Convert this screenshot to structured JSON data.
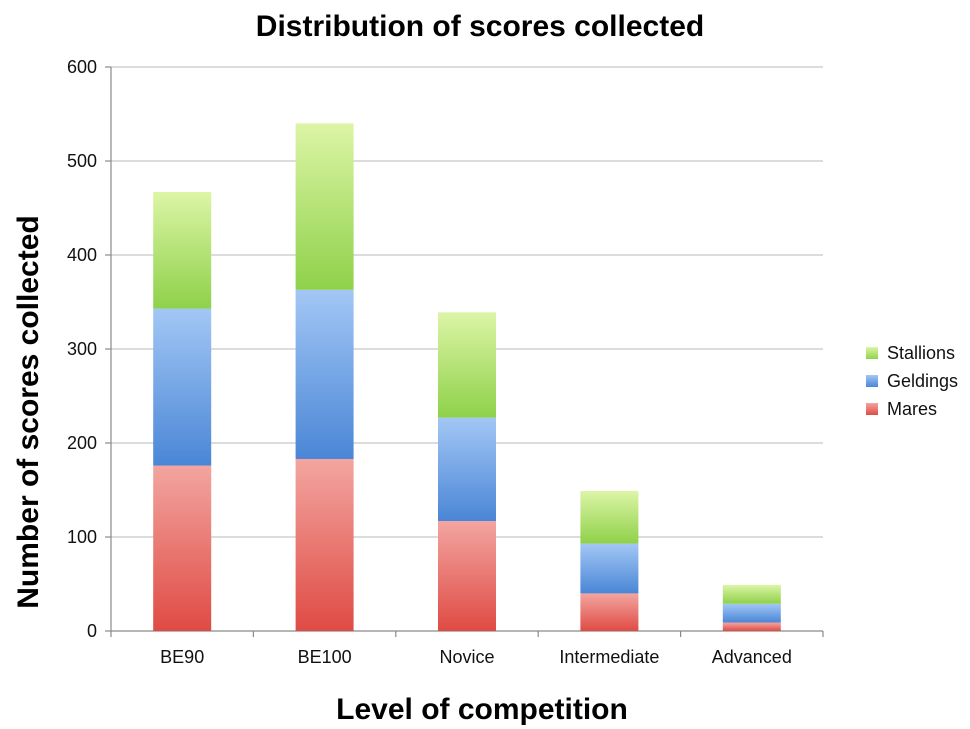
{
  "chart_data": {
    "type": "bar",
    "stacked": true,
    "title": "Distribution of scores collected",
    "xlabel": "Level of competition",
    "ylabel": "Number of scores collected",
    "categories": [
      "BE90",
      "BE100",
      "Novice",
      "Intermediate",
      "Advanced"
    ],
    "series": [
      {
        "name": "Mares",
        "values": [
          176,
          183,
          117,
          40,
          9
        ],
        "color": "#e35a55"
      },
      {
        "name": "Geldings",
        "values": [
          167,
          180,
          110,
          53,
          20
        ],
        "color": "#5593e0"
      },
      {
        "name": "Stallions",
        "values": [
          124,
          177,
          112,
          56,
          20
        ],
        "color": "#a3dc5a"
      }
    ],
    "ylim": [
      0,
      600
    ],
    "yticks": [
      0,
      100,
      200,
      300,
      400,
      500,
      600
    ],
    "grid": true,
    "legend": "right"
  }
}
